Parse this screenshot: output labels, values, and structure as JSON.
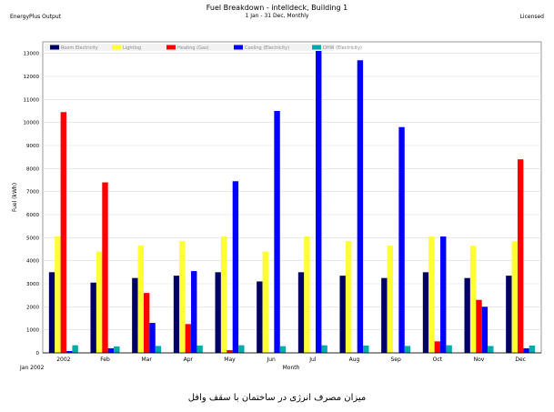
{
  "header": {
    "title": "Fuel Breakdown - intelldeck, Building 1",
    "subtitle": "1 Jan - 31 Dec, Monthly",
    "left_note": "EnergyPlus Output",
    "right_note": "Licensed"
  },
  "caption": "میزان مصرف انرژی در ساختمان با سقف وافل",
  "chart_data": {
    "type": "bar",
    "title": "Fuel Breakdown - intelldeck, Building 1",
    "subtitle": "1 Jan - 31 Dec, Monthly",
    "xlabel": "Month",
    "ylabel": "Fuel (kWh)",
    "x_start_label": "Jan 2002",
    "ylim": [
      0,
      13500
    ],
    "yticks": [
      0,
      1000,
      2000,
      3000,
      4000,
      5000,
      6000,
      7000,
      8000,
      9000,
      10000,
      11000,
      12000,
      13000
    ],
    "grid": true,
    "legend_placement": "top-left",
    "categories": [
      "2002",
      "Feb",
      "Mar",
      "Apr",
      "May",
      "Jun",
      "Jul",
      "Aug",
      "Sep",
      "Oct",
      "Nov",
      "Dec"
    ],
    "series": [
      {
        "name": "Room Electricity",
        "color": "#000066",
        "values": [
          3500,
          3050,
          3250,
          3350,
          3500,
          3100,
          3500,
          3350,
          3250,
          3500,
          3250,
          3350
        ]
      },
      {
        "name": "Lighting",
        "color": "#ffff33",
        "values": [
          5050,
          4400,
          4650,
          4850,
          5050,
          4400,
          5050,
          4850,
          4650,
          5050,
          4650,
          4850
        ]
      },
      {
        "name": "Heating (Gas)",
        "color": "#ff0000",
        "values": [
          10450,
          7400,
          2600,
          1250,
          120,
          0,
          0,
          0,
          0,
          500,
          2300,
          8400
        ]
      },
      {
        "name": "Cooling (Electricity)",
        "color": "#0000ff",
        "values": [
          80,
          200,
          1300,
          3550,
          7450,
          10500,
          13150,
          12700,
          9800,
          5050,
          2000,
          200
        ]
      },
      {
        "name": "DHW (Electricity)",
        "color": "#00aaaa",
        "values": [
          330,
          280,
          300,
          320,
          330,
          290,
          330,
          320,
          300,
          330,
          300,
          320
        ]
      }
    ]
  }
}
